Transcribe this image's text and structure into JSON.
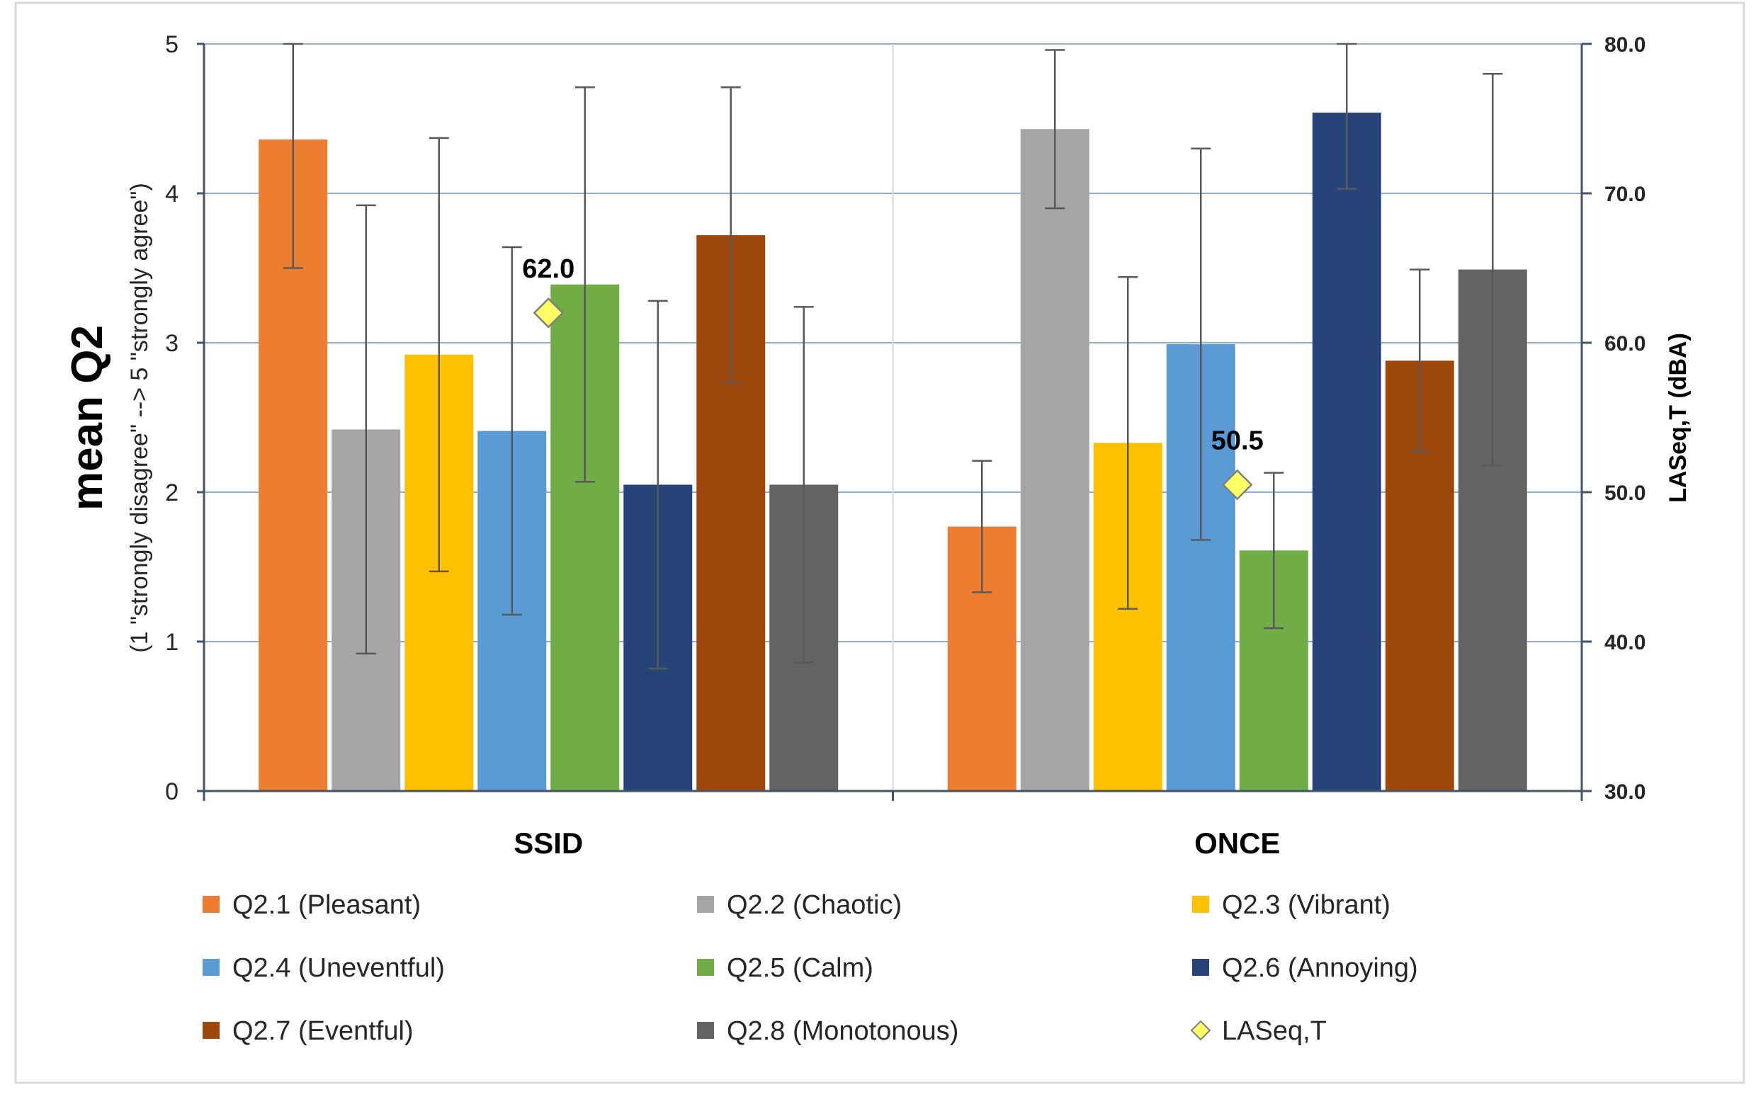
{
  "chart_data": {
    "type": "bar",
    "categories": [
      "SSID",
      "ONCE"
    ],
    "ylabel": "mean Q2",
    "ylabel_sub": "(1 \"strongly disagree\" --> 5 \"strongly agree\")",
    "y2label": "LASeq,T (dBA)",
    "ylim": [
      0,
      5
    ],
    "y2lim": [
      30,
      80
    ],
    "y_ticks": [
      "0",
      "1",
      "2",
      "3",
      "4",
      "5"
    ],
    "y2_ticks": [
      "30.0",
      "40.0",
      "50.0",
      "60.0",
      "70.0",
      "80.0"
    ],
    "grid": true,
    "legend_position": "bottom",
    "series": [
      {
        "name": "Q2.1 (Pleasant)",
        "color": "#ED7D31",
        "values": [
          4.36,
          1.77
        ],
        "error": [
          0.86,
          0.44
        ]
      },
      {
        "name": "Q2.2 (Chaotic)",
        "color": "#A5A5A5",
        "values": [
          2.42,
          4.43
        ],
        "error": [
          1.5,
          0.53
        ]
      },
      {
        "name": "Q2.3 (Vibrant)",
        "color": "#FFC000",
        "values": [
          2.92,
          2.33
        ],
        "error": [
          1.45,
          1.11
        ]
      },
      {
        "name": "Q2.4 (Uneventful)",
        "color": "#5B9BD5",
        "values": [
          2.41,
          2.99
        ],
        "error": [
          1.23,
          1.31
        ]
      },
      {
        "name": "Q2.5 (Calm)",
        "color": "#70AD47",
        "values": [
          3.39,
          1.61
        ],
        "error": [
          1.32,
          0.52
        ]
      },
      {
        "name": "Q2.6 (Annoying)",
        "color": "#264478",
        "values": [
          2.05,
          4.54
        ],
        "error": [
          1.23,
          0.51
        ]
      },
      {
        "name": "Q2.7 (Eventful)",
        "color": "#9E480E",
        "values": [
          3.72,
          2.88
        ],
        "error": [
          0.99,
          0.61
        ]
      },
      {
        "name": "Q2.8 (Monotonous)",
        "color": "#636363",
        "values": [
          2.05,
          3.49
        ],
        "error": [
          1.19,
          1.31
        ]
      }
    ],
    "laseq": {
      "name": "LASeq,T",
      "color": "#FFFF66",
      "values": [
        62.0,
        50.5
      ],
      "labels": [
        "62.0",
        "50.5"
      ],
      "bar_position": 4
    }
  }
}
